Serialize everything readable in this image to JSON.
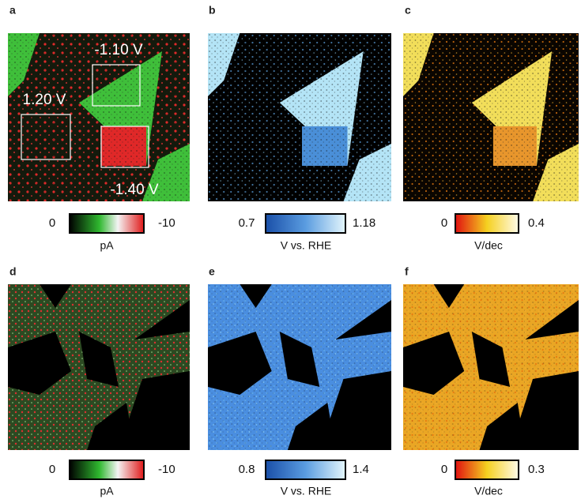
{
  "panels": [
    {
      "label": "a",
      "annotations": [
        "-1.10 V",
        "1.20 V",
        "-1.40 V"
      ],
      "colorbar": {
        "min": "0",
        "max": "-10",
        "unit": "pA"
      }
    },
    {
      "label": "b",
      "colorbar": {
        "min": "0.7",
        "max": "1.18",
        "unit": "V vs. RHE"
      }
    },
    {
      "label": "c",
      "colorbar": {
        "min": "0",
        "max": "0.4",
        "unit": "V/dec"
      }
    },
    {
      "label": "d",
      "colorbar": {
        "min": "0",
        "max": "-10",
        "unit": "pA"
      }
    },
    {
      "label": "e",
      "colorbar": {
        "min": "0.8",
        "max": "1.4",
        "unit": "V vs. RHE"
      }
    },
    {
      "label": "f",
      "colorbar": {
        "min": "0",
        "max": "0.3",
        "unit": "V/dec"
      }
    }
  ]
}
